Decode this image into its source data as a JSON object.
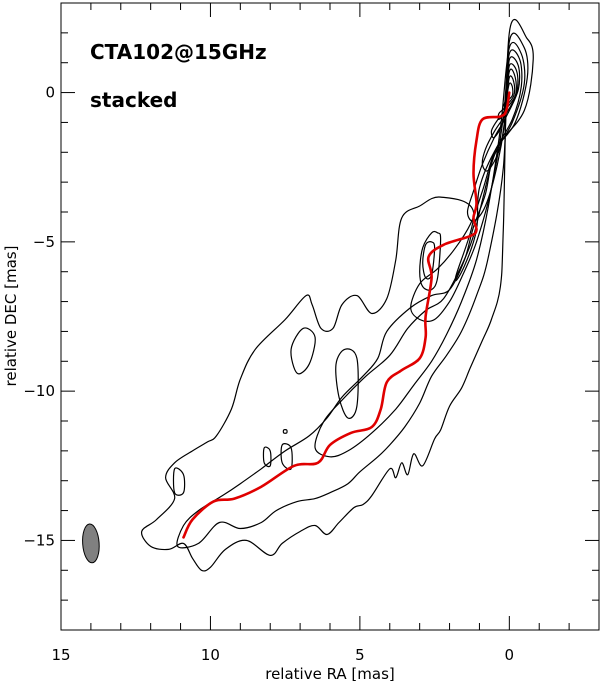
{
  "chart_data": {
    "type": "contour",
    "annotations": {
      "source_label": "CTA102@15GHz",
      "stack_label": "stacked"
    },
    "xlabel": "relative RA [mas]",
    "ylabel": "relative DEC [mas]",
    "xlim": [
      15,
      -3
    ],
    "ylim": [
      -18,
      3
    ],
    "x_direction": "reversed",
    "xticks": [
      15,
      10,
      5,
      0
    ],
    "xtick_labels": [
      "15",
      "10",
      "5",
      "0"
    ],
    "yticks": [
      0,
      -5,
      -10,
      -15
    ],
    "ytick_labels": [
      "0",
      "−5",
      "−10",
      "−15"
    ],
    "x_minor_step": 1,
    "y_minor_step": 1,
    "grid": false,
    "colors": {
      "ridge_line": "#e00000",
      "contours": "#000000",
      "beam_fill": "#808080"
    },
    "ridge_line": {
      "x": [
        0.0,
        0.1,
        0.3,
        0.9,
        1.1,
        1.2,
        1.1,
        1.2,
        1.1,
        1.3,
        2.2,
        2.7,
        2.6,
        2.8,
        2.8,
        3.0,
        3.6,
        4.1,
        4.3,
        4.6,
        5.3,
        6.0,
        6.4,
        7.2,
        8.3,
        9.2,
        9.9,
        10.6,
        10.9
      ],
      "y": [
        0.0,
        -0.6,
        -0.8,
        -0.9,
        -1.6,
        -2.7,
        -3.7,
        -4.2,
        -4.6,
        -4.8,
        -5.1,
        -5.5,
        -6.2,
        -7.5,
        -8.2,
        -8.9,
        -9.3,
        -9.7,
        -10.6,
        -11.2,
        -11.4,
        -11.8,
        -12.4,
        -12.5,
        -13.2,
        -13.6,
        -13.7,
        -14.3,
        -14.9
      ]
    },
    "beam": {
      "center": [
        14.0,
        -15.1
      ],
      "major_mas": 1.3,
      "minor_mas": 0.55,
      "position_angle_deg": -4
    },
    "contours": [
      {
        "level": 1,
        "ra": [
          0.0,
          -0.6,
          -0.8,
          -0.5,
          0.4,
          1.0,
          1.1,
          1.5,
          1.8,
          1.2,
          2.3,
          3.0,
          3.6,
          3.8,
          4.1,
          4.6,
          5.1,
          5.6,
          5.9,
          6.3,
          6.6,
          6.8,
          7.5,
          8.5,
          9.0,
          9.3,
          9.8,
          10.1,
          10.6,
          11.2,
          11.5,
          11.2,
          11.8,
          12.3,
          12.0,
          11.4,
          10.9,
          10.6,
          10.3,
          10.0,
          9.5,
          8.8,
          8.0,
          7.6,
          7.0,
          6.5,
          6.1,
          5.7,
          5.2,
          4.9,
          4.6,
          4.0,
          3.8,
          3.6,
          3.4,
          3.2,
          2.9,
          2.5,
          2.3,
          2.0,
          1.6,
          1.3,
          0.9,
          0.6,
          0.3,
          0.2,
          0.0
        ],
        "dec": [
          2.0,
          1.8,
          1.1,
          -0.6,
          -1.8,
          -3.2,
          -4.6,
          -5.8,
          -6.2,
          -4.0,
          -3.5,
          -3.8,
          -4.2,
          -5.6,
          -6.9,
          -7.4,
          -6.8,
          -7.1,
          -7.9,
          -7.9,
          -7.1,
          -6.8,
          -7.6,
          -8.6,
          -9.6,
          -10.6,
          -11.5,
          -11.7,
          -12.0,
          -12.4,
          -12.9,
          -13.6,
          -14.3,
          -14.7,
          -15.2,
          -15.3,
          -15.1,
          -15.6,
          -16.0,
          -15.9,
          -15.3,
          -15.0,
          -15.5,
          -15.1,
          -14.7,
          -14.5,
          -14.8,
          -14.4,
          -13.9,
          -13.8,
          -13.5,
          -12.6,
          -12.9,
          -12.4,
          -12.8,
          -12.1,
          -12.5,
          -11.6,
          -11.3,
          -10.5,
          -9.9,
          -9.2,
          -8.3,
          -7.6,
          -6.5,
          -4.5,
          2.0
        ]
      },
      {
        "level": 2,
        "ra": [
          0.0,
          -0.5,
          -0.6,
          -0.2,
          0.5,
          0.8,
          1.2,
          1.5,
          2.0,
          2.6,
          3.3,
          4.1,
          4.4,
          4.9,
          5.6,
          6.1,
          6.7,
          7.5,
          8.3,
          9.0,
          9.6,
          10.4,
          10.9,
          11.1,
          10.4,
          9.7,
          9.0,
          8.3,
          7.8,
          7.1,
          6.5,
          6.0,
          5.4,
          5.0,
          4.4,
          4.0,
          3.5,
          3.0,
          2.6,
          2.1,
          1.6,
          1.1,
          0.7,
          0.2,
          0.0
        ],
        "dec": [
          1.7,
          1.5,
          0.5,
          -1.0,
          -2.0,
          -3.4,
          -4.5,
          -5.6,
          -6.6,
          -6.8,
          -7.2,
          -8.0,
          -8.9,
          -9.5,
          -10.2,
          -10.9,
          -11.5,
          -12.0,
          -12.6,
          -13.1,
          -13.5,
          -14.0,
          -14.5,
          -15.2,
          -15.1,
          -14.4,
          -14.6,
          -14.4,
          -14.0,
          -13.7,
          -13.6,
          -13.4,
          -13.1,
          -12.7,
          -12.2,
          -11.8,
          -11.2,
          -10.4,
          -9.5,
          -8.8,
          -8.0,
          -6.8,
          -5.5,
          -2.5,
          1.7
        ]
      },
      {
        "level": 3,
        "ra": [
          0.0,
          -0.4,
          -0.5,
          -0.1,
          0.5,
          0.9,
          1.2,
          1.6,
          2.2,
          2.8,
          3.4,
          4.0,
          4.8,
          5.5,
          6.2,
          6.5,
          6.0,
          5.4,
          4.6,
          3.8,
          3.2,
          2.6,
          2.1,
          1.6,
          1.1,
          0.7,
          0.3,
          0.0
        ],
        "dec": [
          1.5,
          1.3,
          0.3,
          -1.0,
          -2.1,
          -3.6,
          -4.8,
          -5.8,
          -6.9,
          -7.3,
          -7.9,
          -8.8,
          -9.5,
          -10.2,
          -11.0,
          -11.9,
          -12.2,
          -12.0,
          -11.4,
          -10.6,
          -9.8,
          -9.0,
          -8.1,
          -7.0,
          -5.6,
          -3.8,
          -1.2,
          1.5
        ]
      },
      {
        "level": 4,
        "ra": [
          0.0,
          -0.35,
          -0.4,
          -0.1,
          0.5,
          0.9,
          1.3,
          1.8,
          2.4,
          3.0,
          3.3,
          3.0,
          2.5,
          2.0,
          1.6,
          1.1,
          0.6,
          0.2,
          0.0
        ],
        "dec": [
          1.3,
          1.1,
          0.2,
          -0.9,
          -2.0,
          -3.3,
          -4.4,
          -5.2,
          -5.9,
          -6.4,
          -7.2,
          -7.6,
          -7.6,
          -7.0,
          -6.2,
          -5.0,
          -3.2,
          -0.8,
          1.3
        ]
      },
      {
        "level": 5,
        "ra": [
          0.0,
          -0.3,
          -0.3,
          0.1,
          0.5,
          0.9,
          1.2,
          1.4,
          1.2,
          0.8,
          0.4,
          0.1,
          0.0
        ],
        "dec": [
          1.1,
          0.9,
          0.1,
          -0.8,
          -1.5,
          -2.4,
          -3.3,
          -4.0,
          -4.3,
          -3.8,
          -2.4,
          -0.6,
          1.1
        ]
      },
      {
        "level": 6,
        "ra": [
          0.0,
          -0.25,
          -0.25,
          0.1,
          0.5,
          0.8,
          0.9,
          0.7,
          0.3,
          0.1,
          0.0
        ],
        "dec": [
          0.9,
          0.7,
          0.0,
          -0.7,
          -1.3,
          -1.9,
          -2.4,
          -2.6,
          -1.8,
          -0.4,
          0.9
        ]
      },
      {
        "level": 7,
        "ra": [
          0.0,
          -0.2,
          -0.2,
          0.15,
          0.45,
          0.6,
          0.5,
          0.2,
          0.0
        ],
        "dec": [
          0.7,
          0.5,
          -0.1,
          -0.6,
          -1.0,
          -1.3,
          -1.5,
          -0.9,
          0.7
        ]
      },
      {
        "level": 8,
        "ra": [
          0.0,
          -0.15,
          -0.15,
          0.15,
          0.35,
          0.35,
          0.15,
          0.0
        ],
        "dec": [
          0.5,
          0.35,
          -0.1,
          -0.5,
          -0.7,
          -0.9,
          -0.6,
          0.5
        ]
      },
      {
        "level": 9,
        "ra": [
          0.0,
          -0.1,
          -0.1,
          0.1,
          0.2,
          0.1,
          0.0
        ],
        "dec": [
          0.3,
          0.2,
          -0.1,
          -0.3,
          -0.45,
          -0.2,
          0.3
        ]
      },
      {
        "level": 5,
        "ra": [
          2.3,
          2.4,
          2.6,
          2.9,
          3.0,
          2.9,
          2.6,
          2.4,
          2.3
        ],
        "dec": [
          -4.9,
          -4.7,
          -4.7,
          -5.2,
          -6.0,
          -6.5,
          -6.6,
          -6.2,
          -4.9
        ]
      },
      {
        "level": 6,
        "ra": [
          2.5,
          2.6,
          2.8,
          2.9,
          2.8,
          2.6,
          2.5
        ],
        "dec": [
          -5.2,
          -5.0,
          -5.1,
          -5.7,
          -6.2,
          -6.1,
          -5.2
        ]
      },
      {
        "level": 3,
        "ra": [
          5.1,
          5.5,
          5.8,
          5.7,
          5.4,
          5.1,
          5.1
        ],
        "dec": [
          -8.9,
          -8.6,
          -9.1,
          -10.2,
          -10.9,
          -10.5,
          -8.9
        ]
      },
      {
        "level": 2,
        "ra": [
          6.5,
          6.9,
          7.3,
          7.1,
          6.7,
          6.5
        ],
        "dec": [
          -8.2,
          -7.9,
          -8.6,
          -9.4,
          -9.1,
          -8.2
        ]
      },
      {
        "level": 2,
        "ra": [
          7.3,
          7.6,
          7.6,
          7.3,
          7.3
        ],
        "dec": [
          -11.9,
          -11.8,
          -12.4,
          -12.6,
          -11.9
        ]
      },
      {
        "level": 2,
        "ra": [
          8.0,
          8.2,
          8.2,
          8.0,
          8.0
        ],
        "dec": [
          -12.0,
          -11.9,
          -12.4,
          -12.5,
          -12.0
        ]
      },
      {
        "level": 2,
        "ra": [
          10.9,
          11.2,
          11.2,
          10.9,
          10.9
        ],
        "dec": [
          -12.8,
          -12.6,
          -13.4,
          -13.4,
          -12.8
        ]
      },
      {
        "level": 1,
        "ra": [
          7.45,
          7.55,
          7.55,
          7.45,
          7.45
        ],
        "dec": [
          -11.3,
          -11.3,
          -11.4,
          -11.4,
          -11.3
        ]
      }
    ]
  }
}
